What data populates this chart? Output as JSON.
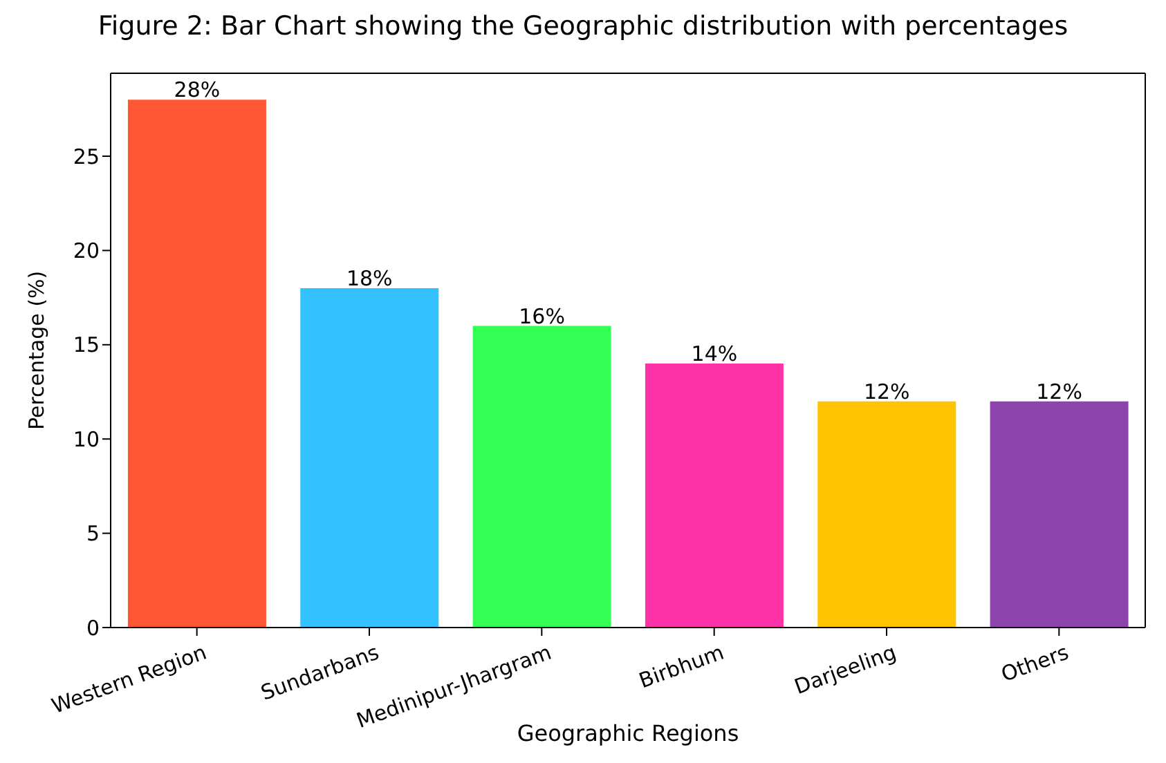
{
  "chart_data": {
    "type": "bar",
    "title": "Figure 2: Bar Chart showing the Geographic distribution with percentages",
    "xlabel": "Geographic Regions",
    "ylabel": "Percentage (%)",
    "categories": [
      "Western Region",
      "Sundarbans",
      "Medinipur-Jhargram",
      "Birbhum",
      "Darjeeling",
      "Others"
    ],
    "values": [
      28,
      18,
      16,
      14,
      12,
      12
    ],
    "colors": [
      "#ff5733",
      "#33c1ff",
      "#33ff57",
      "#ff33a8",
      "#ffc300",
      "#8e44ad"
    ],
    "value_labels": [
      "28%",
      "18%",
      "16%",
      "14%",
      "12%",
      "12%"
    ],
    "ylim": [
      0,
      29.4
    ],
    "yticks": [
      0,
      5,
      10,
      15,
      20,
      25
    ],
    "grid": false,
    "legend": false
  }
}
